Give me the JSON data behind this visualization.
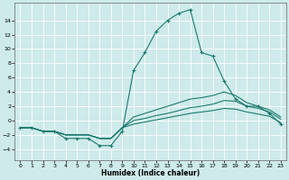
{
  "title": "",
  "xlabel": "Humidex (Indice chaleur)",
  "xlim": [
    -0.5,
    23.5
  ],
  "ylim": [
    -5.5,
    16.5
  ],
  "yticks": [
    -4,
    -2,
    0,
    2,
    4,
    6,
    8,
    10,
    12,
    14
  ],
  "xticks": [
    0,
    1,
    2,
    3,
    4,
    5,
    6,
    7,
    8,
    9,
    10,
    11,
    12,
    13,
    14,
    15,
    16,
    17,
    18,
    19,
    20,
    21,
    22,
    23
  ],
  "background_color": "#ceeaea",
  "grid_color": "#ffffff",
  "line_color": "#1a7a6e",
  "figsize": [
    3.2,
    2.0
  ],
  "dpi": 100,
  "lines": [
    {
      "x": [
        0,
        1,
        2,
        3,
        4,
        5,
        6,
        7,
        8,
        9,
        10,
        11,
        12,
        13,
        14,
        15,
        16,
        17,
        18,
        19,
        20,
        21,
        22,
        23
      ],
      "y": [
        -1,
        -1,
        -1.5,
        -1.5,
        -2.5,
        -2.5,
        -2.5,
        -3.5,
        -3.5,
        -1.5,
        7,
        9.5,
        12.5,
        14,
        15,
        15.5,
        9.5,
        9,
        5.5,
        3,
        2,
        2,
        1,
        -0.5
      ],
      "marker": "+"
    },
    {
      "x": [
        0,
        1,
        2,
        3,
        4,
        5,
        6,
        7,
        8,
        9,
        10,
        11,
        12,
        13,
        14,
        15,
        16,
        17,
        18,
        19,
        20,
        21,
        22,
        23
      ],
      "y": [
        -1,
        -1,
        -1.5,
        -1.5,
        -2,
        -2,
        -2,
        -2.5,
        -2.5,
        -1,
        0.5,
        1.0,
        1.5,
        2.0,
        2.5,
        3.0,
        3.2,
        3.5,
        4.0,
        3.5,
        2.5,
        2.0,
        1.5,
        0.5
      ],
      "marker": null
    },
    {
      "x": [
        0,
        1,
        2,
        3,
        4,
        5,
        6,
        7,
        8,
        9,
        10,
        11,
        12,
        13,
        14,
        15,
        16,
        17,
        18,
        19,
        20,
        21,
        22,
        23
      ],
      "y": [
        -1,
        -1,
        -1.5,
        -1.5,
        -2,
        -2,
        -2,
        -2.5,
        -2.5,
        -1,
        0.0,
        0.3,
        0.7,
        1.0,
        1.4,
        1.8,
        2.0,
        2.3,
        2.8,
        2.7,
        2.0,
        1.7,
        1.2,
        0.2
      ],
      "marker": null
    },
    {
      "x": [
        0,
        1,
        2,
        3,
        4,
        5,
        6,
        7,
        8,
        9,
        10,
        11,
        12,
        13,
        14,
        15,
        16,
        17,
        18,
        19,
        20,
        21,
        22,
        23
      ],
      "y": [
        -1,
        -1,
        -1.5,
        -1.5,
        -2,
        -2,
        -2,
        -2.5,
        -2.5,
        -1,
        -0.5,
        -0.2,
        0.1,
        0.4,
        0.7,
        1.0,
        1.2,
        1.4,
        1.7,
        1.6,
        1.2,
        0.9,
        0.6,
        -0.3
      ],
      "marker": null
    }
  ]
}
